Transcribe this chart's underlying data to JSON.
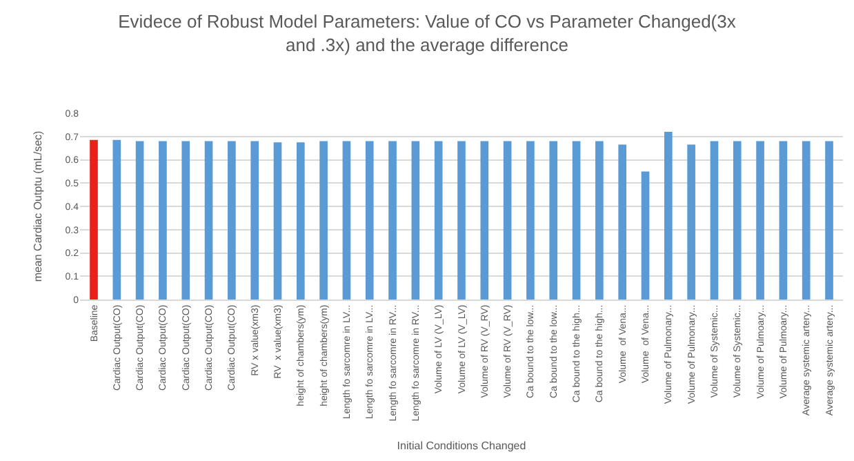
{
  "chart_data": {
    "type": "bar",
    "title": "Evidece of Robust Model Parameters: Value of CO vs Parameter Changed(3x and .3x) and the average difference",
    "xlabel": "Initial Conditions Changed",
    "ylabel": "mean Cardiac Outptu (mL/sec)",
    "categories": [
      "Baseline",
      "Cardiac Output(CO)",
      "Cardiac Output(CO)",
      "Cardiac Output(CO)",
      "Cardiac Output(CO)",
      "Cardiac Output(CO)",
      "Cardiac Output(CO)",
      "RV x value(xm3)",
      "RV  x value(xm3)",
      "height of chambers(ym)",
      "height of chambers(ym)",
      "Length fo sarcomre in LV...",
      "Length fo sarcomre in LV...",
      "Length fo sarcomre in RV...",
      "Length fo sarcomre in RV...",
      "Volume of LV (V_LV)",
      "Volume of LV (V_LV)",
      "Volume of RV (V_RV)",
      "Volume of RV (V_RV)",
      "Ca bound to the low...",
      "Ca bound to the low...",
      "Ca bound to the high...",
      "Ca bound to the high...",
      "Volume  of Vena...",
      "Volume  of Vena...",
      "Volume of Pulmonary...",
      "Volume of Pulmonary...",
      "Volume of Systemic...",
      "Volume of Systemic...",
      "Volume of Pulmoary...",
      "Volume of Pulmoary...",
      "Average systemic artery...",
      "Average systemic artery..."
    ],
    "values": [
      0.685,
      0.685,
      0.68,
      0.68,
      0.68,
      0.68,
      0.68,
      0.68,
      0.675,
      0.675,
      0.68,
      0.68,
      0.68,
      0.68,
      0.68,
      0.68,
      0.68,
      0.68,
      0.68,
      0.68,
      0.68,
      0.68,
      0.68,
      0.665,
      0.55,
      0.72,
      0.665,
      0.68,
      0.68,
      0.68,
      0.68,
      0.68,
      0.68
    ],
    "colors": [
      "#e8211a",
      "#5b9bd5",
      "#5b9bd5",
      "#5b9bd5",
      "#5b9bd5",
      "#5b9bd5",
      "#5b9bd5",
      "#5b9bd5",
      "#5b9bd5",
      "#5b9bd5",
      "#5b9bd5",
      "#5b9bd5",
      "#5b9bd5",
      "#5b9bd5",
      "#5b9bd5",
      "#5b9bd5",
      "#5b9bd5",
      "#5b9bd5",
      "#5b9bd5",
      "#5b9bd5",
      "#5b9bd5",
      "#5b9bd5",
      "#5b9bd5",
      "#5b9bd5",
      "#5b9bd5",
      "#5b9bd5",
      "#5b9bd5",
      "#5b9bd5",
      "#5b9bd5",
      "#5b9bd5",
      "#5b9bd5",
      "#5b9bd5",
      "#5b9bd5"
    ],
    "ylim": [
      0,
      0.8
    ],
    "yticks": [
      0,
      0.1,
      0.2,
      0.3,
      0.4,
      0.5,
      0.6,
      0.7,
      0.8
    ],
    "grid": "y"
  }
}
